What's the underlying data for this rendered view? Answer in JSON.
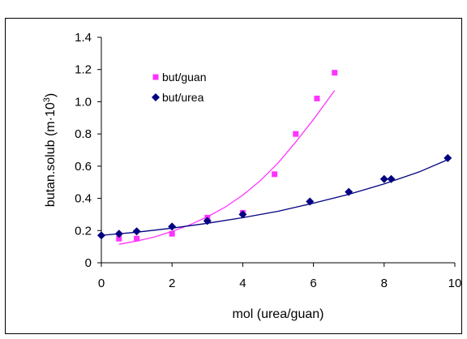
{
  "chart_data": {
    "type": "scatter",
    "xlabel": "mol (urea/guan)",
    "ylabel_prefix": "butan.solub   (m·10",
    "ylabel_exp": "3",
    "ylabel_suffix": ")",
    "xlim": [
      0,
      10
    ],
    "ylim": [
      0,
      1.4
    ],
    "xticks": [
      0,
      2,
      4,
      6,
      8,
      10
    ],
    "yticks": [
      0,
      0.2,
      0.4,
      0.6,
      0.8,
      1.0,
      1.2,
      1.4
    ],
    "ytick_labels": [
      "0",
      "0.2",
      "0.4",
      "0.6",
      "0.8",
      "1.0",
      "1.2",
      "1.4"
    ],
    "grid": false,
    "legend_position": "top-left",
    "series": [
      {
        "name": "but/guan",
        "color": "#ff33ff",
        "marker": "square",
        "x": [
          0.5,
          1.0,
          2.0,
          3.0,
          4.0,
          4.9,
          5.5,
          6.1,
          6.6
        ],
        "y": [
          0.15,
          0.15,
          0.18,
          0.28,
          0.31,
          0.55,
          0.8,
          1.02,
          1.18
        ],
        "trend": [
          [
            0.5,
            0.115
          ],
          [
            1.0,
            0.135
          ],
          [
            1.5,
            0.16
          ],
          [
            2.0,
            0.195
          ],
          [
            2.5,
            0.235
          ],
          [
            3.0,
            0.285
          ],
          [
            3.5,
            0.345
          ],
          [
            4.0,
            0.42
          ],
          [
            4.5,
            0.51
          ],
          [
            5.0,
            0.62
          ],
          [
            5.5,
            0.75
          ],
          [
            6.0,
            0.89
          ],
          [
            6.6,
            1.07
          ]
        ]
      },
      {
        "name": "but/urea",
        "color": "#000080",
        "marker": "diamond",
        "x": [
          0.0,
          0.5,
          1.0,
          2.0,
          3.0,
          4.0,
          5.9,
          7.0,
          8.0,
          8.2,
          9.8
        ],
        "y": [
          0.17,
          0.18,
          0.195,
          0.225,
          0.26,
          0.3,
          0.38,
          0.44,
          0.52,
          0.52,
          0.65
        ],
        "trend": [
          [
            0.0,
            0.17
          ],
          [
            1.0,
            0.19
          ],
          [
            2.0,
            0.215
          ],
          [
            3.0,
            0.245
          ],
          [
            4.0,
            0.28
          ],
          [
            5.0,
            0.32
          ],
          [
            6.0,
            0.37
          ],
          [
            7.0,
            0.425
          ],
          [
            8.0,
            0.49
          ],
          [
            9.0,
            0.565
          ],
          [
            9.8,
            0.64
          ]
        ]
      }
    ]
  }
}
